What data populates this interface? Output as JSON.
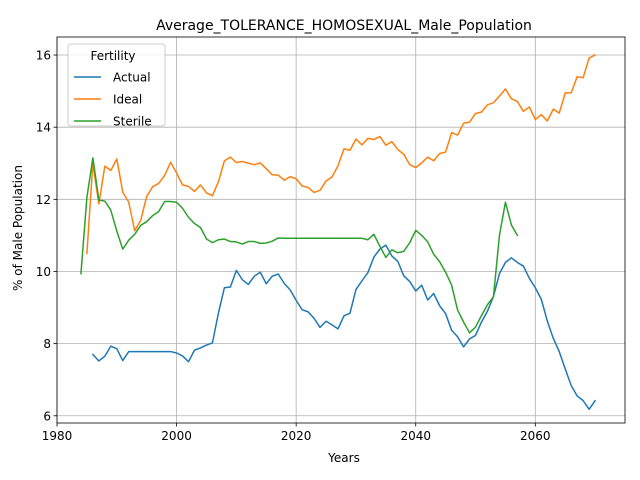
{
  "chart_data": {
    "type": "line",
    "title": "Average_TOLERANCE_HOMOSEXUAL_Male_Population",
    "xlabel": "Years",
    "ylabel": "% of Male Population",
    "xlim": [
      1980,
      2075
    ],
    "ylim": [
      5.8,
      16.5
    ],
    "xticks": [
      1980,
      2000,
      2020,
      2040,
      2060
    ],
    "yticks": [
      6,
      8,
      10,
      12,
      14,
      16
    ],
    "grid": true,
    "legend": {
      "title": "Fertility",
      "position": "top-left"
    },
    "series": [
      {
        "name": "Actual",
        "color": "#1f77b4",
        "x": [
          1986,
          1987,
          1988,
          1989,
          1990,
          1991,
          1992,
          1993,
          1994,
          1995,
          1996,
          1997,
          1998,
          1999,
          2000,
          2001,
          2002,
          2003,
          2004,
          2005,
          2006,
          2007,
          2008,
          2009,
          2010,
          2011,
          2012,
          2013,
          2014,
          2015,
          2016,
          2017,
          2018,
          2019,
          2020,
          2021,
          2022,
          2023,
          2024,
          2025,
          2026,
          2027,
          2028,
          2029,
          2030,
          2031,
          2032,
          2033,
          2034,
          2035,
          2036,
          2037,
          2038,
          2039,
          2040,
          2041,
          2042,
          2043,
          2044,
          2045,
          2046,
          2047,
          2048,
          2049,
          2050,
          2051,
          2052,
          2053,
          2054,
          2055,
          2056,
          2057,
          2058,
          2059,
          2060,
          2061,
          2062,
          2063,
          2064,
          2065,
          2066,
          2067,
          2068,
          2069,
          2070
        ],
        "values": [
          7.7,
          7.52,
          7.65,
          7.93,
          7.86,
          7.53,
          7.78,
          7.78,
          7.78,
          7.78,
          7.78,
          7.78,
          7.78,
          7.78,
          7.74,
          7.66,
          7.5,
          7.82,
          7.88,
          7.96,
          8.02,
          8.85,
          9.55,
          9.57,
          10.03,
          9.77,
          9.64,
          9.87,
          9.98,
          9.66,
          9.87,
          9.93,
          9.67,
          9.49,
          9.2,
          8.94,
          8.88,
          8.7,
          8.45,
          8.62,
          8.52,
          8.41,
          8.77,
          8.84,
          9.5,
          9.74,
          9.97,
          10.4,
          10.62,
          10.73,
          10.43,
          10.28,
          9.88,
          9.72,
          9.46,
          9.62,
          9.21,
          9.39,
          9.05,
          8.83,
          8.37,
          8.19,
          7.91,
          8.13,
          8.23,
          8.6,
          8.9,
          9.31,
          9.94,
          10.25,
          10.38,
          10.25,
          10.15,
          9.81,
          9.55,
          9.23,
          8.63,
          8.15,
          7.78,
          7.3,
          6.84,
          6.55,
          6.42,
          6.18,
          6.42
        ]
      },
      {
        "name": "Ideal",
        "color": "#ff7f0e",
        "x": [
          1985,
          1986,
          1987,
          1988,
          1989,
          1990,
          1991,
          1992,
          1993,
          1994,
          1995,
          1996,
          1997,
          1998,
          1999,
          2000,
          2001,
          2002,
          2003,
          2004,
          2005,
          2006,
          2007,
          2008,
          2009,
          2010,
          2011,
          2012,
          2013,
          2014,
          2015,
          2016,
          2017,
          2018,
          2019,
          2020,
          2021,
          2022,
          2023,
          2024,
          2025,
          2026,
          2027,
          2028,
          2029,
          2030,
          2031,
          2032,
          2033,
          2034,
          2035,
          2036,
          2037,
          2038,
          2039,
          2040,
          2041,
          2042,
          2043,
          2044,
          2045,
          2046,
          2047,
          2048,
          2049,
          2050,
          2051,
          2052,
          2053,
          2054,
          2055,
          2056,
          2057,
          2058,
          2059,
          2060,
          2061,
          2062,
          2063,
          2064,
          2065,
          2066,
          2067,
          2068,
          2069,
          2070
        ],
        "values": [
          10.5,
          13.0,
          11.87,
          12.92,
          12.8,
          13.12,
          12.2,
          11.92,
          11.13,
          11.42,
          12.08,
          12.35,
          12.44,
          12.66,
          13.03,
          12.73,
          12.4,
          12.36,
          12.22,
          12.4,
          12.18,
          12.1,
          12.49,
          13.07,
          13.17,
          13.02,
          13.05,
          13.0,
          12.96,
          13.01,
          12.85,
          12.68,
          12.67,
          12.53,
          12.63,
          12.57,
          12.37,
          12.33,
          12.19,
          12.25,
          12.51,
          12.62,
          12.93,
          13.4,
          13.36,
          13.67,
          13.51,
          13.69,
          13.66,
          13.74,
          13.5,
          13.6,
          13.38,
          13.25,
          12.96,
          12.88,
          13.01,
          13.17,
          13.07,
          13.27,
          13.31,
          13.85,
          13.78,
          14.11,
          14.14,
          14.38,
          14.42,
          14.62,
          14.68,
          14.86,
          15.06,
          14.79,
          14.71,
          14.44,
          14.56,
          14.21,
          14.35,
          14.17,
          14.5,
          14.39,
          14.95,
          14.95,
          15.4,
          15.37,
          15.92,
          16.0
        ]
      },
      {
        "name": "Sterile",
        "color": "#2ca02c",
        "x": [
          1984,
          1985,
          1986,
          1987,
          1988,
          1989,
          1990,
          1991,
          1992,
          1993,
          1994,
          1995,
          1996,
          1997,
          1998,
          1999,
          2000,
          2001,
          2002,
          2003,
          2004,
          2005,
          2006,
          2007,
          2008,
          2009,
          2010,
          2011,
          2012,
          2013,
          2014,
          2015,
          2016,
          2017,
          2018,
          2019,
          2020,
          2021,
          2022,
          2023,
          2024,
          2025,
          2026,
          2027,
          2028,
          2029,
          2030,
          2031,
          2032,
          2033,
          2034,
          2035,
          2036,
          2037,
          2038,
          2039,
          2040,
          2041,
          2042,
          2043,
          2044,
          2045,
          2046,
          2047,
          2048,
          2049,
          2050,
          2051,
          2052,
          2053,
          2054,
          2055,
          2056,
          2057
        ],
        "values": [
          9.94,
          12.05,
          13.15,
          11.98,
          11.95,
          11.7,
          11.12,
          10.62,
          10.87,
          11.03,
          11.28,
          11.38,
          11.55,
          11.66,
          11.94,
          11.94,
          11.92,
          11.75,
          11.5,
          11.33,
          11.22,
          10.9,
          10.8,
          10.88,
          10.9,
          10.83,
          10.82,
          10.76,
          10.83,
          10.83,
          10.78,
          10.79,
          10.84,
          10.93,
          10.92,
          10.92,
          10.92,
          10.92,
          10.92,
          10.92,
          10.92,
          10.92,
          10.92,
          10.92,
          10.92,
          10.92,
          10.92,
          10.92,
          10.88,
          11.03,
          10.7,
          10.39,
          10.6,
          10.52,
          10.56,
          10.8,
          11.14,
          11.0,
          10.82,
          10.48,
          10.27,
          9.98,
          9.62,
          8.93,
          8.6,
          8.3,
          8.46,
          8.78,
          9.08,
          9.3,
          11.0,
          11.92,
          11.29,
          11.0
        ]
      }
    ]
  }
}
